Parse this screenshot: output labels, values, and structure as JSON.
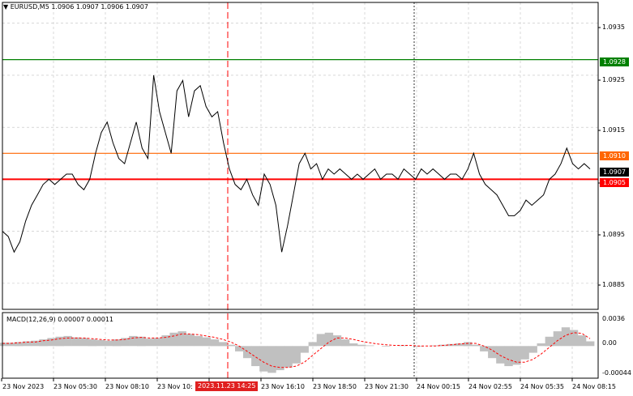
{
  "header": {
    "symbol_line": "▼ EURUSD,M5  1.0906 1.0907 1.0906 1.0907"
  },
  "macd": {
    "label": "MACD(12,26,9) 0.00007 0.00011",
    "ticks": [
      "0.0036",
      "0.00",
      "-0.00044"
    ]
  },
  "price_axis": {
    "ticks": [
      "1.0935",
      "1.0925",
      "1.0915",
      "1.0895",
      "1.0885"
    ],
    "tick_values": [
      1.0935,
      1.0925,
      1.0915,
      1.0895,
      1.0885
    ]
  },
  "levels": [
    {
      "label": "1.0928",
      "value": 1.0928,
      "color": "#008000",
      "text_color": "#ffffff"
    },
    {
      "label": "1.0910",
      "value": 1.091,
      "color": "#ff6600",
      "text_color": "#ffffff"
    },
    {
      "label": "1.0907",
      "value": 1.0907,
      "color": "#000000",
      "text_color": "#ffffff"
    },
    {
      "label": "1.0905",
      "value": 1.0905,
      "color": "#ff0000",
      "text_color": "#ffffff"
    }
  ],
  "time_axis": {
    "labels": [
      "23 Nov 2023",
      "23 Nov 05:30",
      "23 Nov 08:10",
      "23 Nov 10:",
      "23 Nov 16:10",
      "23 Nov 18:50",
      "23 Nov 21:30",
      "24 Nov 00:15",
      "24 Nov 02:55",
      "24 Nov 05:35",
      "24 Nov 08:15"
    ],
    "cursor_time": "2023.11.23 14:25"
  },
  "colors": {
    "price_line": "#000000",
    "grid": "#c0c0c0",
    "macd_hist": "#c0c0c0",
    "macd_signal": "#ff0000",
    "cursor": "#ff0000"
  },
  "chart_data": {
    "type": "line",
    "title": "EURUSD,M5",
    "price_scale": [
      1.088,
      1.0939
    ],
    "close_series": [
      1.0895,
      1.0894,
      1.0891,
      1.0893,
      1.0897,
      1.09,
      1.0902,
      1.0904,
      1.0905,
      1.0904,
      1.0905,
      1.0906,
      1.0906,
      1.0904,
      1.0903,
      1.0905,
      1.091,
      1.0914,
      1.0916,
      1.0912,
      1.0909,
      1.0908,
      1.0912,
      1.0916,
      1.0911,
      1.0909,
      1.0925,
      1.0918,
      1.0914,
      1.091,
      1.0922,
      1.0924,
      1.0917,
      1.0922,
      1.0923,
      1.0919,
      1.0917,
      1.0918,
      1.0912,
      1.0907,
      1.0904,
      1.0903,
      1.0905,
      1.0902,
      1.09,
      1.0906,
      1.0904,
      1.09,
      1.0891,
      1.0896,
      1.0902,
      1.0908,
      1.091,
      1.0907,
      1.0908,
      1.0905,
      1.0907,
      1.0906,
      1.0907,
      1.0906,
      1.0905,
      1.0906,
      1.0905,
      1.0906,
      1.0907,
      1.0905,
      1.0906,
      1.0906,
      1.0905,
      1.0907,
      1.0906,
      1.0905,
      1.0907,
      1.0906,
      1.0907,
      1.0906,
      1.0905,
      1.0906,
      1.0906,
      1.0905,
      1.0907,
      1.091,
      1.0906,
      1.0904,
      1.0903,
      1.0902,
      1.09,
      1.0898,
      1.0898,
      1.0899,
      1.0901,
      1.09,
      1.0901,
      1.0902,
      1.0905,
      1.0906,
      1.0908,
      1.0911,
      1.0908,
      1.0907,
      1.0908,
      1.0907
    ],
    "macd_hist": [
      5e-05,
      5e-05,
      6e-05,
      7e-05,
      8e-05,
      0.0001,
      0.00012,
      0.00014,
      0.00015,
      0.00013,
      0.00012,
      0.0001,
      9e-05,
      8e-05,
      0.0001,
      0.00012,
      0.00015,
      0.00014,
      0.00011,
      0.00012,
      0.00016,
      0.0002,
      0.00022,
      0.00018,
      0.00015,
      0.00013,
      0.0001,
      6e-05,
      2e-05,
      -8e-05,
      -0.00018,
      -0.0003,
      -0.00038,
      -0.0004,
      -0.00036,
      -0.00032,
      -0.00026,
      -0.0001,
      6e-05,
      0.00018,
      0.0002,
      0.00016,
      0.0001,
      4e-05,
      2e-05,
      1e-05,
      0.0,
      -1e-05,
      0.0,
      1e-05,
      0.0,
      -1e-05,
      0.0,
      1e-05,
      2e-05,
      3e-05,
      4e-05,
      6e-05,
      2e-05,
      -8e-05,
      -0.00018,
      -0.00026,
      -0.0003,
      -0.00028,
      -0.0002,
      -0.0001,
      4e-05,
      0.00014,
      0.00022,
      0.00028,
      0.00024,
      0.00016,
      7e-05
    ],
    "macd_signal": [
      4e-05,
      4e-05,
      5e-05,
      6e-05,
      6e-05,
      8e-05,
      9e-05,
      0.00011,
      0.00012,
      0.00012,
      0.00012,
      0.00011,
      0.0001,
      9e-05,
      9e-05,
      0.0001,
      0.00012,
      0.00013,
      0.00012,
      0.00012,
      0.00013,
      0.00015,
      0.00018,
      0.00018,
      0.00017,
      0.00015,
      0.00013,
      0.0001,
      6e-05,
      0.0,
      -8e-05,
      -0.00016,
      -0.00024,
      -0.0003,
      -0.00032,
      -0.00032,
      -0.0003,
      -0.00024,
      -0.00014,
      -4e-05,
      6e-05,
      0.00012,
      0.00012,
      0.0001,
      7e-05,
      5e-05,
      3e-05,
      2e-05,
      1e-05,
      1e-05,
      1e-05,
      0.0,
      0.0,
      0.0,
      1e-05,
      2e-05,
      3e-05,
      4e-05,
      4e-05,
      0.0,
      -6e-05,
      -0.00014,
      -0.0002,
      -0.00024,
      -0.00024,
      -0.0002,
      -0.00012,
      -2e-05,
      8e-05,
      0.00016,
      0.0002,
      0.00019,
      0.00011
    ]
  }
}
